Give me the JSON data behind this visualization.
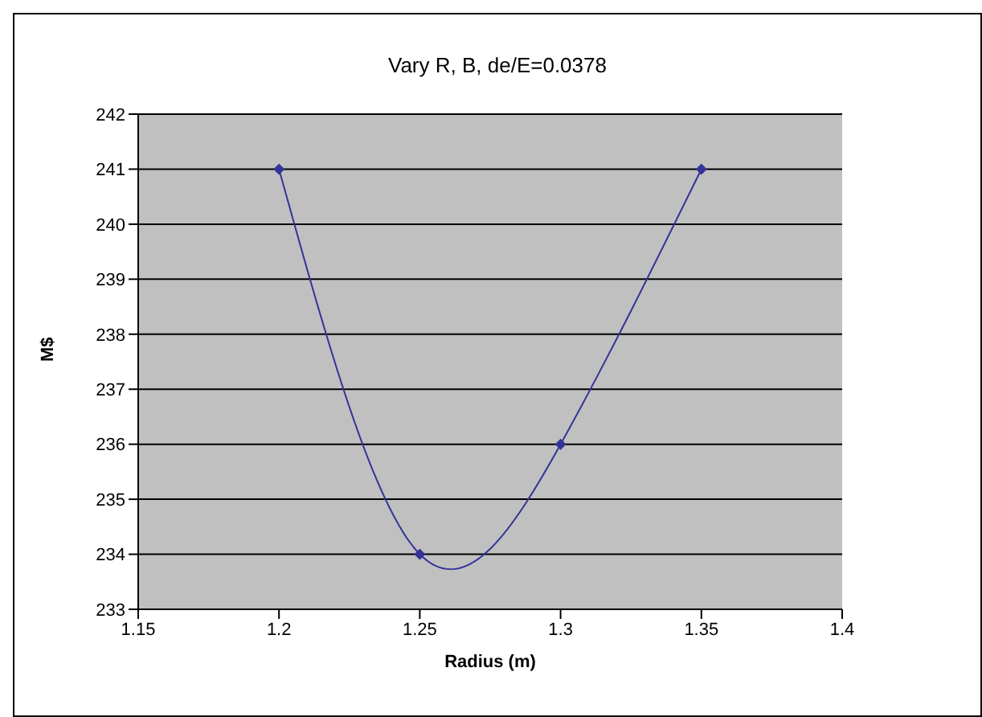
{
  "chart_data": {
    "type": "line",
    "title": "Vary R, B, de/E=0.0378",
    "xlabel": "Radius (m)",
    "ylabel": "M$",
    "x": [
      1.2,
      1.25,
      1.3,
      1.35
    ],
    "series": [
      {
        "color": "#333399",
        "values": [
          241,
          234,
          236,
          241
        ]
      }
    ],
    "xlim": [
      1.15,
      1.4
    ],
    "xticks": [
      1.15,
      1.2,
      1.25,
      1.3,
      1.35,
      1.4
    ],
    "ylim": [
      233,
      242
    ],
    "yticks": [
      233,
      234,
      235,
      236,
      237,
      238,
      239,
      240,
      241,
      242
    ],
    "grid": "y",
    "legend": false,
    "marker": "diamond",
    "line_style": "solid"
  }
}
